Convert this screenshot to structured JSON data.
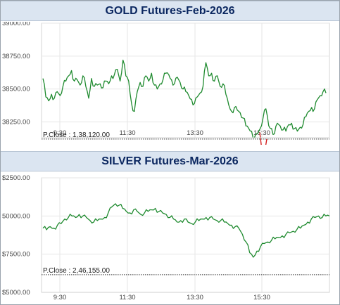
{
  "chart_data": [
    {
      "type": "line",
      "title": "GOLD Futures-Feb-2026",
      "x_ticks": [
        "9:30",
        "11:30",
        "13:30",
        "15:30"
      ],
      "y_ticks": [
        "38250.00",
        "38500.00",
        "38750.00",
        "39000.00"
      ],
      "ylim": [
        38130,
        39000
      ],
      "pclose_label": "P.Close : 1,38,120.00",
      "pclose_value": 38120,
      "colors": {
        "line": "#1e8a2e",
        "dip": "#d42020",
        "reference": "#333333"
      },
      "series": [
        {
          "values": [
            38580,
            38440,
            38410,
            38460,
            38430,
            38480,
            38450,
            38520,
            38560,
            38600,
            38640,
            38560,
            38570,
            38530,
            38600,
            38520,
            38430,
            38580,
            38520,
            38530,
            38540,
            38510,
            38560,
            38540,
            38600,
            38610,
            38650,
            38560,
            38720,
            38600,
            38560,
            38390,
            38330,
            38480,
            38550,
            38520,
            38600,
            38560,
            38620,
            38530,
            38500,
            38540,
            38570,
            38620,
            38610,
            38570,
            38540,
            38590,
            38550,
            38500,
            38480,
            38450,
            38420,
            38390,
            38440,
            38470,
            38520,
            38700,
            38600,
            38620,
            38560,
            38600,
            38520,
            38540,
            38460,
            38380,
            38330,
            38360,
            38340,
            38320,
            38280,
            38220,
            38200,
            38180,
            38130,
            38160,
            38200,
            38280,
            38350,
            38220,
            38200,
            38160,
            38240,
            38220,
            38190,
            38180,
            38230,
            38240,
            38200,
            38180,
            38210,
            38230,
            38290,
            38330,
            38360,
            38350,
            38420,
            38450,
            38480,
            38470
          ]
        }
      ],
      "dip": {
        "values": [
          38170,
          38060,
          37990,
          38040,
          38120
        ]
      }
    },
    {
      "type": "line",
      "title": "SILVER Futures-Mar-2026",
      "x_ticks": [
        "9:30",
        "11:30",
        "13:30",
        "15:30"
      ],
      "y_ticks": [
        "245000.00",
        "247500.00",
        "250000.00",
        "252500.00"
      ],
      "y_tick_labels": [
        "$5000.00",
        "$7500.00",
        "50000.00",
        "$2500.00"
      ],
      "ylim": [
        245000,
        252500
      ],
      "pclose_label": "P.Close : 2,46,155.00",
      "pclose_value": 246155,
      "colors": {
        "line": "#1e8a2e",
        "reference": "#333333"
      },
      "series": [
        {
          "values": [
            249200,
            249100,
            249300,
            249200,
            249400,
            249500,
            249800,
            249900,
            250000,
            249900,
            250100,
            250000,
            249900,
            249700,
            249600,
            249700,
            249800,
            249900,
            250200,
            250600,
            250800,
            250700,
            250500,
            250300,
            250200,
            250400,
            250300,
            250100,
            250200,
            250300,
            250400,
            250500,
            250300,
            250200,
            250100,
            249900,
            249800,
            249600,
            249700,
            249800,
            249600,
            249500,
            249600,
            249700,
            249800,
            249900,
            249900,
            249800,
            249700,
            249700,
            249600,
            249500,
            249400,
            249300,
            249200,
            248800,
            248300,
            247600,
            247300,
            247700,
            248000,
            248200,
            248300,
            248400,
            248500,
            248600,
            248700,
            248800,
            248900,
            249000,
            249100,
            249200,
            249400,
            249600,
            249800,
            249900,
            250000,
            249900,
            250000,
            250000
          ]
        }
      ]
    }
  ]
}
